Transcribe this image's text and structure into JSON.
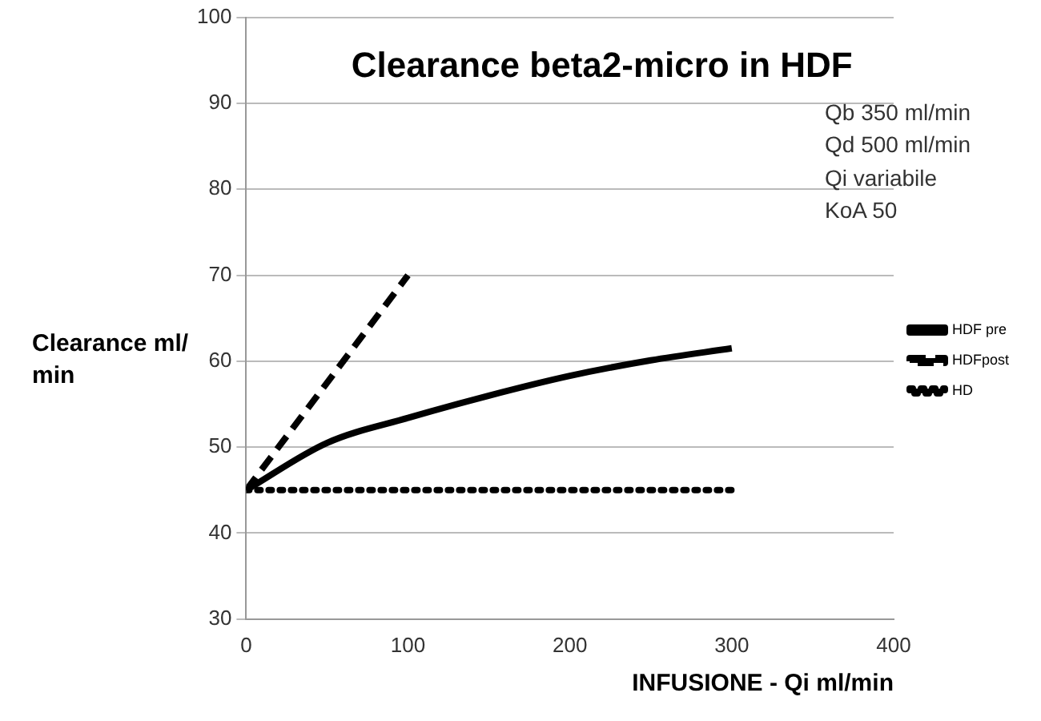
{
  "chart_data": {
    "type": "line",
    "title": "Clearance beta2-micro in HDF",
    "xlabel": "INFUSIONE - Qi ml/min",
    "ylabel": "Clearance ml/\nmin",
    "annotations": [
      "Qb 350 ml/min\nQd 500 ml/min\nQi variabile\nKoA 50"
    ],
    "xlim": [
      0,
      400
    ],
    "xticks": [
      0,
      100,
      200,
      300,
      400
    ],
    "ylim": [
      30,
      100
    ],
    "yticks": [
      30,
      40,
      50,
      60,
      70,
      80,
      90,
      100
    ],
    "grid": "y",
    "legend": "right",
    "marker": "none",
    "series": [
      {
        "name": "HDF pre",
        "color": "#000000",
        "line_style": "solid",
        "x": [
          0,
          50,
          100,
          150,
          200,
          250,
          300
        ],
        "values": [
          45,
          50.5,
          53.4,
          56,
          58.3,
          60.1,
          61.5
        ]
      },
      {
        "name": "HDFpost",
        "color": "#000000",
        "line_style": "dashed",
        "x": [
          0,
          100
        ],
        "values": [
          45,
          70
        ]
      },
      {
        "name": "HD",
        "color": "#000000",
        "line_style": "dotted",
        "x": [
          0,
          300
        ],
        "values": [
          45,
          45
        ]
      }
    ]
  }
}
